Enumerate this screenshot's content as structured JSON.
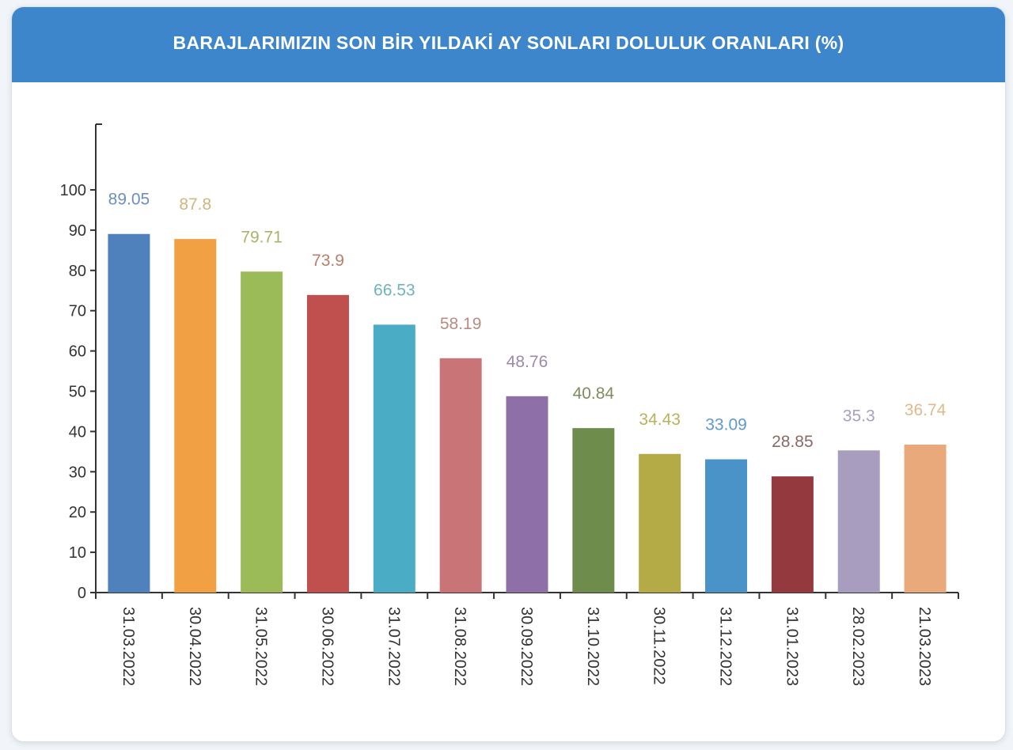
{
  "header": {
    "title": "BARAJLARIMIZIN SON BİR YILDAKİ AY SONLARI DOLULUK ORANLARI (%)",
    "background": "#3d86cc"
  },
  "chart_data": {
    "type": "bar",
    "title": "BARAJLARIMIZIN SON BİR YILDAKİ AY SONLARI DOLULUK ORANLARI (%)",
    "xlabel": "",
    "ylabel": "",
    "ylim": [
      0,
      100
    ],
    "yticks": [
      0,
      10,
      20,
      30,
      40,
      50,
      60,
      70,
      80,
      90,
      100
    ],
    "grid": false,
    "legend": "none",
    "categories": [
      "31.03.2022",
      "30.04.2022",
      "31.05.2022",
      "30.06.2022",
      "31.07.2022",
      "31.08.2022",
      "30.09.2022",
      "31.10.2022",
      "30.11.2022",
      "31.12.2022",
      "31.01.2023",
      "28.02.2023",
      "21.03.2023"
    ],
    "values": [
      89.05,
      87.8,
      79.71,
      73.9,
      66.53,
      58.19,
      48.76,
      40.84,
      34.43,
      33.09,
      28.85,
      35.3,
      36.74
    ],
    "data_labels": [
      "89.05",
      "87.8",
      "79.71",
      "73.9",
      "66.53",
      "58.19",
      "48.76",
      "40.84",
      "34.43",
      "33.09",
      "28.85",
      "35.3",
      "36.74"
    ],
    "bar_colors": [
      "#4f81bd",
      "#f1a043",
      "#9bbb59",
      "#c0504d",
      "#4bacc6",
      "#c97577",
      "#8e6fa8",
      "#6e8c4c",
      "#b4aa46",
      "#4a93c9",
      "#943a3e",
      "#a89cbf",
      "#eaa97a"
    ],
    "label_colors": [
      "#6a8fc0",
      "#d0b67c",
      "#a7b46a",
      "#b77d6d",
      "#6fb2c2",
      "#b98a80",
      "#9c8aae",
      "#7d8c5e",
      "#b8b25c",
      "#5f9acb",
      "#8a6a63",
      "#a8a0c0",
      "#e1b98c"
    ]
  }
}
